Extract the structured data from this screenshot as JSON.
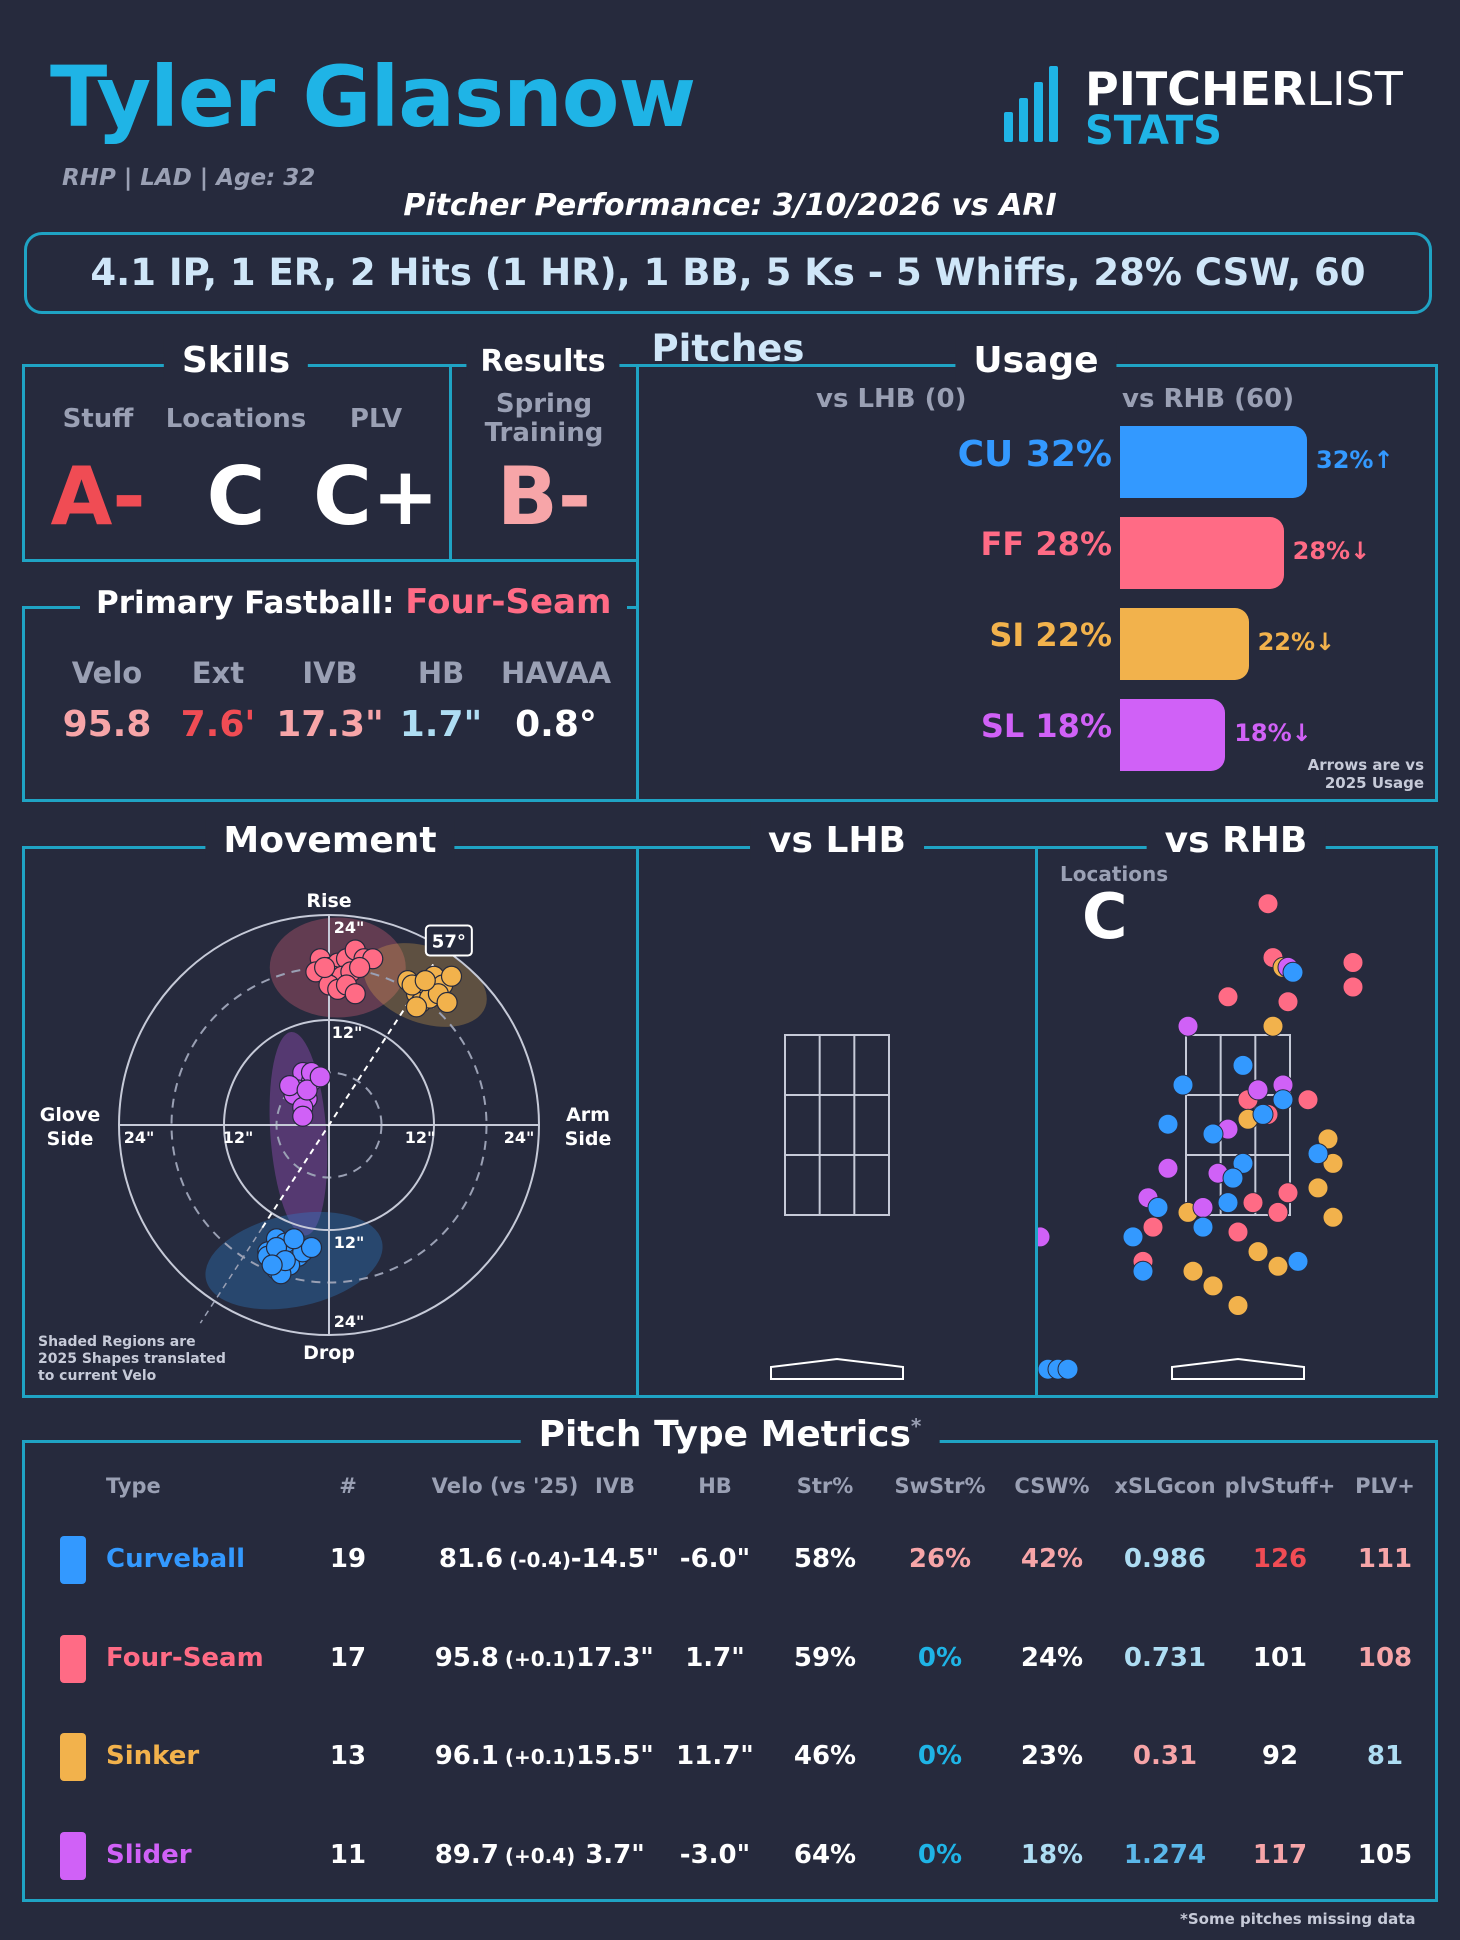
{
  "header": {
    "name": "Tyler Glasnow",
    "subtitle": "RHP | LAD | Age: 32",
    "performance": "Pitcher Performance: 3/10/2026 vs ARI",
    "stat_line": "4.1 IP, 1 ER, 2 Hits (1 HR), 1 BB, 5 Ks - 5 Whiffs, 28% CSW, 60 Pitches"
  },
  "logo": {
    "word1": "PITCHER",
    "word2": "LIST",
    "word3": "STATS"
  },
  "colors": {
    "background": "#262a3d",
    "panel_border": "#1fa3c4",
    "curveball": "#3399ff",
    "fourseam": "#ff6b85",
    "sinker": "#f2b24c",
    "slider": "#d061f7"
  },
  "skills": {
    "title": "Skills",
    "labels": [
      "Stuff",
      "Locations",
      "PLV"
    ],
    "grades": [
      "A-",
      "C",
      "C+"
    ],
    "grade_colors": [
      "#f04c54",
      "#ffffff",
      "#ffffff"
    ]
  },
  "results": {
    "title": "Results",
    "label": "Spring\nTraining",
    "grade": "B-",
    "grade_color": "#f7a5a8"
  },
  "fastball": {
    "title": "Primary Fastball:",
    "pitch": "Four-Seam",
    "labels": [
      "Velo",
      "Ext",
      "IVB",
      "HB",
      "HAVAA"
    ],
    "values": [
      "95.8",
      "7.6'",
      "17.3\"",
      "1.7\"",
      "0.8°"
    ],
    "value_colors": [
      "#f7a5a8",
      "#f04c54",
      "#f7a5a8",
      "#aeddf3",
      "#ffffff"
    ]
  },
  "usage": {
    "title": "Usage",
    "col_lhb": "vs LHB (0)",
    "col_rhb": "vs RHB (60)",
    "rows": [
      {
        "label": "CU 32%",
        "pct": 32,
        "change": "32%↑",
        "color": "#3399ff"
      },
      {
        "label": "FF 28%",
        "pct": 28,
        "change": "28%↓",
        "color": "#ff6b85"
      },
      {
        "label": "SI 22%",
        "pct": 22,
        "change": "22%↓",
        "color": "#f2b24c"
      },
      {
        "label": "SL 18%",
        "pct": 18,
        "change": "18%↓",
        "color": "#d061f7"
      }
    ],
    "note": "Arrows are vs\n2025 Usage"
  },
  "movement": {
    "title": "Movement",
    "rise": "Rise",
    "drop": "Drop",
    "glove": "Glove\nSide",
    "arm": "Arm\nSide",
    "ring_labels": [
      "12\"",
      "24\""
    ],
    "arm_angle_label": "57°",
    "arm_angle": 57,
    "note": "Shaded Regions are\n2025 Shapes translated\nto current Velo",
    "chart_data": {
      "type": "scatter",
      "xlim": [
        -30,
        30
      ],
      "ylim": [
        -30,
        30
      ],
      "series": [
        {
          "name": "CU",
          "color": "#3399ff",
          "x": [
            -6,
            -5,
            -4.5,
            -6.5,
            -7,
            -5.5,
            -4,
            -3.5,
            -6,
            -5,
            -7,
            -4.5,
            -5.5,
            -6,
            -3,
            -2,
            -5,
            -4,
            -6.5
          ],
          "y": [
            -13,
            -14,
            -15,
            -15.5,
            -14.5,
            -16,
            -14,
            -15,
            -16.5,
            -13.5,
            -15,
            -16,
            -17,
            -14,
            -14.5,
            -14,
            -15.5,
            -13,
            -16
          ]
        },
        {
          "name": "FF",
          "color": "#ff6b85",
          "x": [
            -1,
            0,
            1,
            2,
            3,
            4,
            5,
            -1.5,
            0.5,
            1.5,
            2.5,
            3.5,
            0,
            1,
            2,
            3,
            -0.5
          ],
          "y": [
            19,
            18,
            18.5,
            19,
            20,
            19,
            19,
            17.5,
            17,
            17,
            17.5,
            18,
            16,
            15.5,
            16,
            15,
            18
          ]
        },
        {
          "name": "SI",
          "color": "#f2b24c",
          "x": [
            9,
            10,
            11,
            12,
            13,
            10.5,
            11.5,
            12.5,
            9.5,
            10,
            11,
            13.5,
            14
          ],
          "y": [
            16.5,
            15,
            15.5,
            17,
            16,
            14,
            14.5,
            15,
            16,
            13.5,
            16.5,
            14,
            17
          ]
        },
        {
          "name": "SL",
          "color": "#d061f7",
          "x": [
            -3,
            -2,
            -3.5,
            -2.5,
            -4,
            -3,
            -2,
            -4.5,
            -3,
            -2.5,
            -1
          ],
          "y": [
            6,
            5,
            4,
            3,
            3.5,
            2,
            6,
            4.5,
            1,
            4,
            5.5
          ]
        }
      ]
    }
  },
  "vs_lhb": {
    "title": "vs LHB"
  },
  "vs_rhb": {
    "title": "vs RHB",
    "locations_label": "Locations",
    "locations_grade": "C",
    "chart_data": {
      "type": "scatter",
      "xlim": [
        -2.0,
        2.0
      ],
      "ylim": [
        0,
        5.0
      ],
      "series": [
        {
          "name": "CU",
          "color": "#3399ff",
          "x": [
            0.55,
            -0.55,
            0.45,
            -0.25,
            0.05,
            -0.05,
            0.8,
            -0.8,
            0.6,
            -0.1,
            -0.35,
            -1.05,
            -0.95,
            -1.9,
            -1.8,
            -1.7,
            0.05,
            -0.7,
            0.25
          ],
          "y": [
            4.15,
            3.0,
            2.85,
            2.5,
            2.2,
            2.05,
            2.3,
            1.75,
            1.2,
            1.8,
            1.55,
            1.45,
            1.1,
            0.1,
            0.1,
            0.1,
            3.2,
            2.6,
            2.7
          ]
        },
        {
          "name": "FF",
          "color": "#ff6b85",
          "x": [
            0.3,
            0.35,
            1.15,
            1.15,
            -0.1,
            0.5,
            0.1,
            0.3,
            0.7,
            -0.25,
            -0.2,
            0.4,
            -0.85,
            -0.95,
            0.5,
            0.15,
            0.0
          ],
          "y": [
            4.85,
            4.3,
            4.25,
            4.0,
            3.9,
            3.85,
            2.85,
            2.7,
            2.85,
            2.5,
            2.1,
            1.7,
            1.55,
            1.2,
            1.9,
            1.8,
            1.5
          ]
        },
        {
          "name": "SI",
          "color": "#f2b24c",
          "x": [
            0.45,
            0.35,
            0.1,
            0.9,
            0.95,
            0.8,
            -0.5,
            0.95,
            0.2,
            0.4,
            -0.45,
            -0.25,
            0.0
          ],
          "y": [
            4.2,
            3.6,
            2.65,
            2.45,
            2.2,
            1.95,
            1.7,
            1.65,
            1.3,
            1.15,
            1.1,
            0.95,
            0.75
          ]
        },
        {
          "name": "SL",
          "color": "#d061f7",
          "x": [
            0.5,
            -0.5,
            0.45,
            0.2,
            -0.1,
            -0.7,
            -0.9,
            -0.35,
            -0.2,
            0.05,
            -1.98
          ],
          "y": [
            4.2,
            3.6,
            3.0,
            2.95,
            2.55,
            2.15,
            1.85,
            1.75,
            2.1,
            2.2,
            1.45
          ]
        }
      ]
    }
  },
  "metrics": {
    "title": "Pitch Type Metrics",
    "title_mark": "*",
    "headers": [
      "Type",
      "#",
      "Velo (vs '25)",
      "IVB",
      "HB",
      "Str%",
      "SwStr%",
      "CSW%",
      "xSLGcon",
      "plvStuff+",
      "PLV+"
    ],
    "rows": [
      {
        "type": "Curveball",
        "color": "#3399ff",
        "count": "19",
        "velo": "81.6",
        "velo_diff": "(-0.4)",
        "ivb": "-14.5\"",
        "hb": "-6.0\"",
        "str": "58%",
        "swstr": "26%",
        "csw": "42%",
        "xslg": "0.986",
        "stuff": "126",
        "plv": "111",
        "swstr_color": "#f7a5a8",
        "csw_color": "#f7a5a8",
        "xslg_color": "#aeddf3",
        "stuff_color": "#f04c54",
        "plv_color": "#f7a5a8"
      },
      {
        "type": "Four-Seam",
        "color": "#ff6b85",
        "count": "17",
        "velo": "95.8",
        "velo_diff": "(+0.1)",
        "ivb": "17.3\"",
        "hb": "1.7\"",
        "str": "59%",
        "swstr": "0%",
        "csw": "24%",
        "xslg": "0.731",
        "stuff": "101",
        "plv": "108",
        "swstr_color": "#1fb4e6",
        "csw_color": "#ffffff",
        "xslg_color": "#aeddf3",
        "stuff_color": "#ffffff",
        "plv_color": "#f7a5a8"
      },
      {
        "type": "Sinker",
        "color": "#f2b24c",
        "count": "13",
        "velo": "96.1",
        "velo_diff": "(+0.1)",
        "ivb": "15.5\"",
        "hb": "11.7\"",
        "str": "46%",
        "swstr": "0%",
        "csw": "23%",
        "xslg": "0.31",
        "stuff": "92",
        "plv": "81",
        "swstr_color": "#1fb4e6",
        "csw_color": "#ffffff",
        "xslg_color": "#f7a5a8",
        "stuff_color": "#ffffff",
        "plv_color": "#aeddf3"
      },
      {
        "type": "Slider",
        "color": "#d061f7",
        "count": "11",
        "velo": "89.7",
        "velo_diff": "(+0.4)",
        "ivb": "3.7\"",
        "hb": "-3.0\"",
        "str": "64%",
        "swstr": "0%",
        "csw": "18%",
        "xslg": "1.274",
        "stuff": "117",
        "plv": "105",
        "swstr_color": "#1fb4e6",
        "csw_color": "#aeddf3",
        "xslg_color": "#5bb8ea",
        "stuff_color": "#f7a5a8",
        "plv_color": "#ffffff"
      }
    ],
    "footnote": "*Some pitches missing data"
  }
}
